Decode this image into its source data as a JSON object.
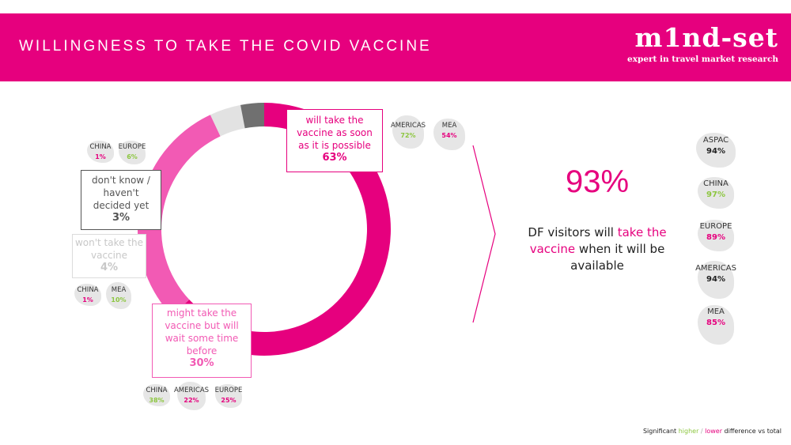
{
  "header": {
    "title": "WILLINGNESS TO TAKE THE COVID VACCINE",
    "bg_color": "#e6007e"
  },
  "logo": {
    "text": "m1nd-set",
    "tagline": "expert in travel market research"
  },
  "chart_data": {
    "type": "pie",
    "style": "donut",
    "slices": [
      {
        "label": "will take the vaccine as soon as it is possible",
        "value_label": "63%",
        "value": 63,
        "color": "#e6007e"
      },
      {
        "label": "might take the vaccine but will wait some time before",
        "value_label": "30%",
        "value": 30,
        "color": "#f25ab4"
      },
      {
        "label": "won't take the vaccine",
        "value_label": "4%",
        "value": 4,
        "color": "#e2e2e2"
      },
      {
        "label": "don't know / haven't decided yet",
        "value_label": "3%",
        "value": 3,
        "color": "#707070"
      }
    ],
    "regional_callouts": {
      "will_take": [
        {
          "region": "AMERICAS",
          "value": "72%",
          "sig": "higher"
        },
        {
          "region": "MEA",
          "value": "54%",
          "sig": "lower"
        }
      ],
      "dont_know": [
        {
          "region": "CHINA",
          "value": "1%",
          "sig": "lower"
        },
        {
          "region": "EUROPE",
          "value": "6%",
          "sig": "higher"
        }
      ],
      "wont_take": [
        {
          "region": "CHINA",
          "value": "1%",
          "sig": "lower"
        },
        {
          "region": "MEA",
          "value": "10%",
          "sig": "higher"
        }
      ],
      "might_take": [
        {
          "region": "CHINA",
          "value": "38%",
          "sig": "higher"
        },
        {
          "region": "AMERICAS",
          "value": "22%",
          "sig": "lower"
        },
        {
          "region": "EUROPE",
          "value": "25%",
          "sig": "lower"
        }
      ]
    }
  },
  "summary": {
    "big_value": "93%",
    "line1": "DF visitors will ",
    "highlight": "take the vaccine",
    "line2": " when it will be available"
  },
  "regions_right": [
    {
      "region": "ASPAC",
      "value": "94%",
      "sig": "none"
    },
    {
      "region": "CHINA",
      "value": "97%",
      "sig": "higher"
    },
    {
      "region": "EUROPE",
      "value": "89%",
      "sig": "lower"
    },
    {
      "region": "AMERICAS",
      "value": "94%",
      "sig": "none"
    },
    {
      "region": "MEA",
      "value": "85%",
      "sig": "lower"
    }
  ],
  "footnote": {
    "prefix": "Significant ",
    "higher": "higher",
    "sep": " / ",
    "lower": "lower",
    "suffix": " difference vs total"
  },
  "colors": {
    "higher": "#8cc63f",
    "lower": "#e6007e",
    "neutral": "#222222"
  }
}
